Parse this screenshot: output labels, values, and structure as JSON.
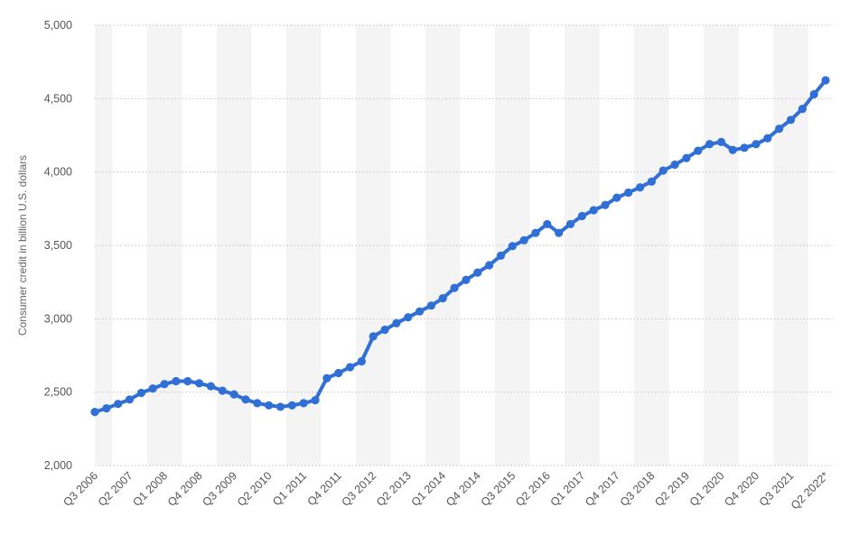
{
  "chart_data": {
    "type": "line",
    "title": "",
    "xlabel": "",
    "ylabel": "Consumer credit in billion U.S. dollars",
    "ylim": [
      2000,
      5000
    ],
    "yticks": [
      2000,
      2500,
      3000,
      3500,
      4000,
      4500,
      5000
    ],
    "ytick_labels": [
      "2,000",
      "2,500",
      "3,000",
      "3,500",
      "4,000",
      "4,500",
      "5,000"
    ],
    "x_tick_labels": [
      "Q3 2006",
      "Q2 2007",
      "Q1 2008",
      "Q4 2008",
      "Q3 2009",
      "Q2 2010",
      "Q1 2011",
      "Q4 2011",
      "Q3 2012",
      "Q2 2013",
      "Q1 2014",
      "Q4 2014",
      "Q3 2015",
      "Q2 2016",
      "Q1 2017",
      "Q4 2017",
      "Q3 2018",
      "Q2 2019",
      "Q1 2020",
      "Q4 2020",
      "Q3 2021",
      "Q2 2022*"
    ],
    "grid": true,
    "line_color": "#2f6fd6",
    "categories": [
      "Q3 2006",
      "Q4 2006",
      "Q1 2007",
      "Q2 2007",
      "Q3 2007",
      "Q4 2007",
      "Q1 2008",
      "Q2 2008",
      "Q3 2008",
      "Q4 2008",
      "Q1 2009",
      "Q2 2009",
      "Q3 2009",
      "Q4 2009",
      "Q1 2010",
      "Q2 2010",
      "Q3 2010",
      "Q4 2010",
      "Q1 2011",
      "Q2 2011",
      "Q3 2011",
      "Q4 2011",
      "Q1 2012",
      "Q2 2012",
      "Q3 2012",
      "Q4 2012",
      "Q1 2013",
      "Q2 2013",
      "Q3 2013",
      "Q4 2013",
      "Q1 2014",
      "Q2 2014",
      "Q3 2014",
      "Q4 2014",
      "Q1 2015",
      "Q2 2015",
      "Q3 2015",
      "Q4 2015",
      "Q1 2016",
      "Q2 2016",
      "Q3 2016",
      "Q4 2016",
      "Q1 2017",
      "Q2 2017",
      "Q3 2017",
      "Q4 2017",
      "Q1 2018",
      "Q2 2018",
      "Q3 2018",
      "Q4 2018",
      "Q1 2019",
      "Q2 2019",
      "Q3 2019",
      "Q4 2019",
      "Q1 2020",
      "Q2 2020",
      "Q3 2020",
      "Q4 2020",
      "Q1 2021",
      "Q2 2021",
      "Q3 2021",
      "Q4 2021",
      "Q1 2022",
      "Q2 2022*"
    ],
    "series": [
      {
        "values": [
          2365,
          2390,
          2420,
          2450,
          2495,
          2525,
          2555,
          2575,
          2575,
          2560,
          2540,
          2510,
          2485,
          2450,
          2425,
          2410,
          2400,
          2410,
          2425,
          2445,
          2595,
          2630,
          2670,
          2710,
          2880,
          2925,
          2970,
          3010,
          3050,
          3090,
          3140,
          3210,
          3265,
          3315,
          3365,
          3430,
          3495,
          3535,
          3585,
          3645,
          3585,
          3645,
          3700,
          3740,
          3775,
          3825,
          3860,
          3895,
          3935,
          4010,
          4050,
          4095,
          4145,
          4190,
          4205,
          4150,
          4165,
          4190,
          4230,
          4295,
          4355,
          4430,
          4530,
          4625
        ]
      }
    ]
  }
}
